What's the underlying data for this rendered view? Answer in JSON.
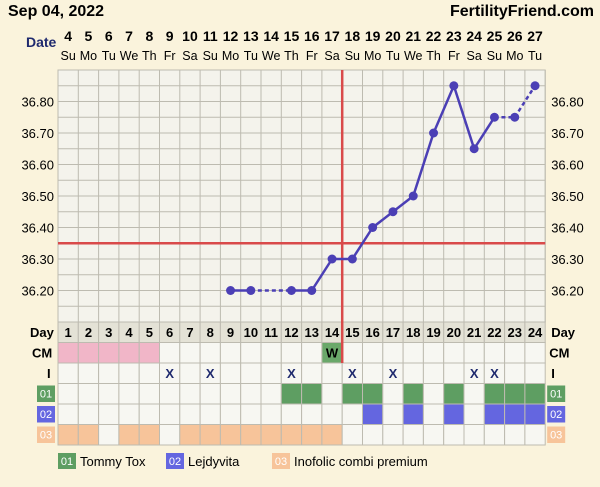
{
  "header": {
    "date": "Sep 04, 2022",
    "brand": "FertilityFriend.com"
  },
  "colors": {
    "line": "#4b3fb5",
    "coverline": "#d94a4a",
    "grid_bg": "#f4f3ec",
    "grid_line": "#bdbbb0",
    "cm_pink": "#f1b6c8",
    "cm_green": "#6aa86a",
    "row1_green": "#5e9e62",
    "row2_blue": "#6466e0",
    "row3_orange": "#f7c49a"
  },
  "labels": {
    "date_row": "Date",
    "day_row": "Day",
    "cm_row": "CM",
    "i_row": "I",
    "x_mark": "X",
    "w_mark": "W"
  },
  "chart_data": {
    "type": "line",
    "dates": [
      "4",
      "5",
      "6",
      "7",
      "8",
      "9",
      "10",
      "11",
      "12",
      "13",
      "14",
      "15",
      "16",
      "17",
      "18",
      "19",
      "20",
      "21",
      "22",
      "23",
      "24",
      "25",
      "26",
      "27"
    ],
    "weekdays": [
      "Su",
      "Mo",
      "Tu",
      "We",
      "Th",
      "Fr",
      "Sa",
      "Su",
      "Mo",
      "Tu",
      "We",
      "Th",
      "Fr",
      "Sa",
      "Su",
      "Mo",
      "Tu",
      "We",
      "Th",
      "Fr",
      "Sa",
      "Su",
      "Mo",
      "Tu"
    ],
    "cycle_days": [
      "1",
      "2",
      "3",
      "4",
      "5",
      "6",
      "7",
      "8",
      "9",
      "10",
      "11",
      "12",
      "13",
      "14",
      "15",
      "16",
      "17",
      "18",
      "19",
      "20",
      "21",
      "22",
      "23",
      "24"
    ],
    "y_ticks": [
      "36.20",
      "36.30",
      "36.40",
      "36.50",
      "36.60",
      "36.70",
      "36.80"
    ],
    "ylim": [
      36.1,
      36.9
    ],
    "temps": [
      null,
      null,
      null,
      null,
      null,
      null,
      null,
      null,
      36.2,
      36.2,
      null,
      36.2,
      36.2,
      36.3,
      36.3,
      36.4,
      36.45,
      36.5,
      36.7,
      36.85,
      36.65,
      36.75,
      36.75,
      36.85
    ],
    "dashed_segments": [
      [
        9,
        10
      ],
      [
        10,
        12
      ],
      [
        21,
        22
      ],
      [
        22,
        23
      ]
    ],
    "coverline": 36.35,
    "ovulation_cycle_day": 15,
    "cm": [
      "pink",
      "pink",
      "pink",
      "pink",
      "pink",
      "",
      "",
      "",
      "",
      "",
      "",
      "",
      "",
      "W",
      "",
      "",
      "",
      "",
      "",
      "",
      "",
      "",
      "",
      ""
    ],
    "intercourse": [
      false,
      false,
      false,
      false,
      false,
      true,
      false,
      true,
      false,
      false,
      false,
      true,
      false,
      false,
      true,
      false,
      true,
      false,
      false,
      false,
      true,
      true,
      false,
      false
    ],
    "row1": [
      false,
      false,
      false,
      false,
      false,
      false,
      false,
      false,
      false,
      false,
      false,
      true,
      true,
      false,
      true,
      true,
      false,
      true,
      false,
      true,
      false,
      true,
      true,
      true
    ],
    "row2": [
      false,
      false,
      false,
      false,
      false,
      false,
      false,
      false,
      false,
      false,
      false,
      false,
      false,
      false,
      false,
      true,
      false,
      true,
      false,
      true,
      false,
      true,
      true,
      true
    ],
    "row3": [
      true,
      true,
      false,
      true,
      true,
      false,
      true,
      true,
      true,
      true,
      true,
      true,
      true,
      true,
      false,
      false,
      false,
      false,
      false,
      false,
      false,
      false,
      false,
      false
    ],
    "row_codes": [
      "01",
      "02",
      "03"
    ],
    "legend": [
      {
        "code": "01",
        "name": "Tommy Tox"
      },
      {
        "code": "02",
        "name": "Lejdyvita"
      },
      {
        "code": "03",
        "name": "Inofolic combi premium"
      }
    ]
  }
}
